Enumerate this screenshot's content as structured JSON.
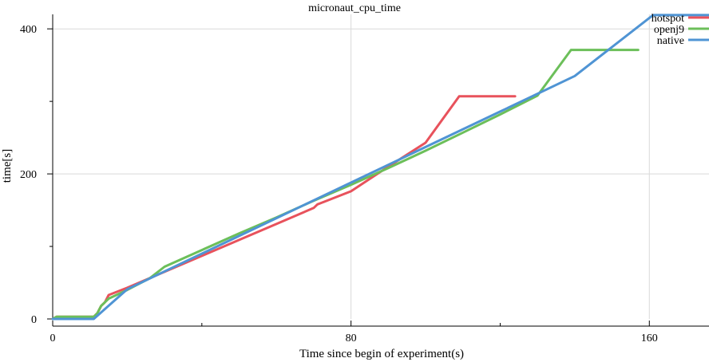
{
  "chart_data": {
    "type": "line",
    "title": "micronaut_cpu_time",
    "xlabel": "Time since begin of experiment(s)",
    "ylabel": "time[s]",
    "xlim": [
      0,
      176
    ],
    "ylim": [
      0,
      420
    ],
    "xticks": [
      0,
      80,
      160
    ],
    "xtick_labels": [
      "0",
      "80",
      "160"
    ],
    "yticks": [
      0,
      200,
      400
    ],
    "ytick_labels": [
      "0",
      "200",
      "400"
    ],
    "grid": true,
    "legend": "top-right",
    "series": [
      {
        "name": "hotspot",
        "color": "#e8525c",
        "x": [
          0,
          1,
          2,
          11,
          12,
          13,
          14,
          15,
          20,
          30,
          40,
          50,
          60,
          70,
          71,
          72,
          80,
          90,
          100,
          109,
          112,
          124
        ],
        "y": [
          0,
          3,
          3,
          3,
          8,
          18,
          23,
          33,
          43,
          65,
          87,
          109,
          131,
          153,
          158,
          160,
          176,
          210,
          243,
          307,
          307,
          307
        ]
      },
      {
        "name": "openj9",
        "color": "#6cbf5a",
        "x": [
          0,
          1,
          2,
          11,
          12,
          13,
          14,
          15,
          20,
          26,
          30,
          40,
          50,
          60,
          70,
          80,
          90,
          100,
          110,
          120,
          130,
          139,
          142,
          157
        ],
        "y": [
          0,
          3,
          3,
          3,
          8,
          18,
          23,
          28,
          40,
          56,
          72,
          95,
          118,
          140,
          163,
          185,
          208,
          232,
          257,
          282,
          308,
          371,
          371,
          371
        ]
      },
      {
        "name": "native",
        "color": "#4f94d4",
        "x": [
          0,
          11,
          20,
          40,
          60,
          80,
          100,
          120,
          140,
          161,
          176
        ],
        "y": [
          0,
          0,
          41,
          90,
          139,
          188,
          237,
          286,
          335,
          419,
          419
        ]
      }
    ]
  }
}
